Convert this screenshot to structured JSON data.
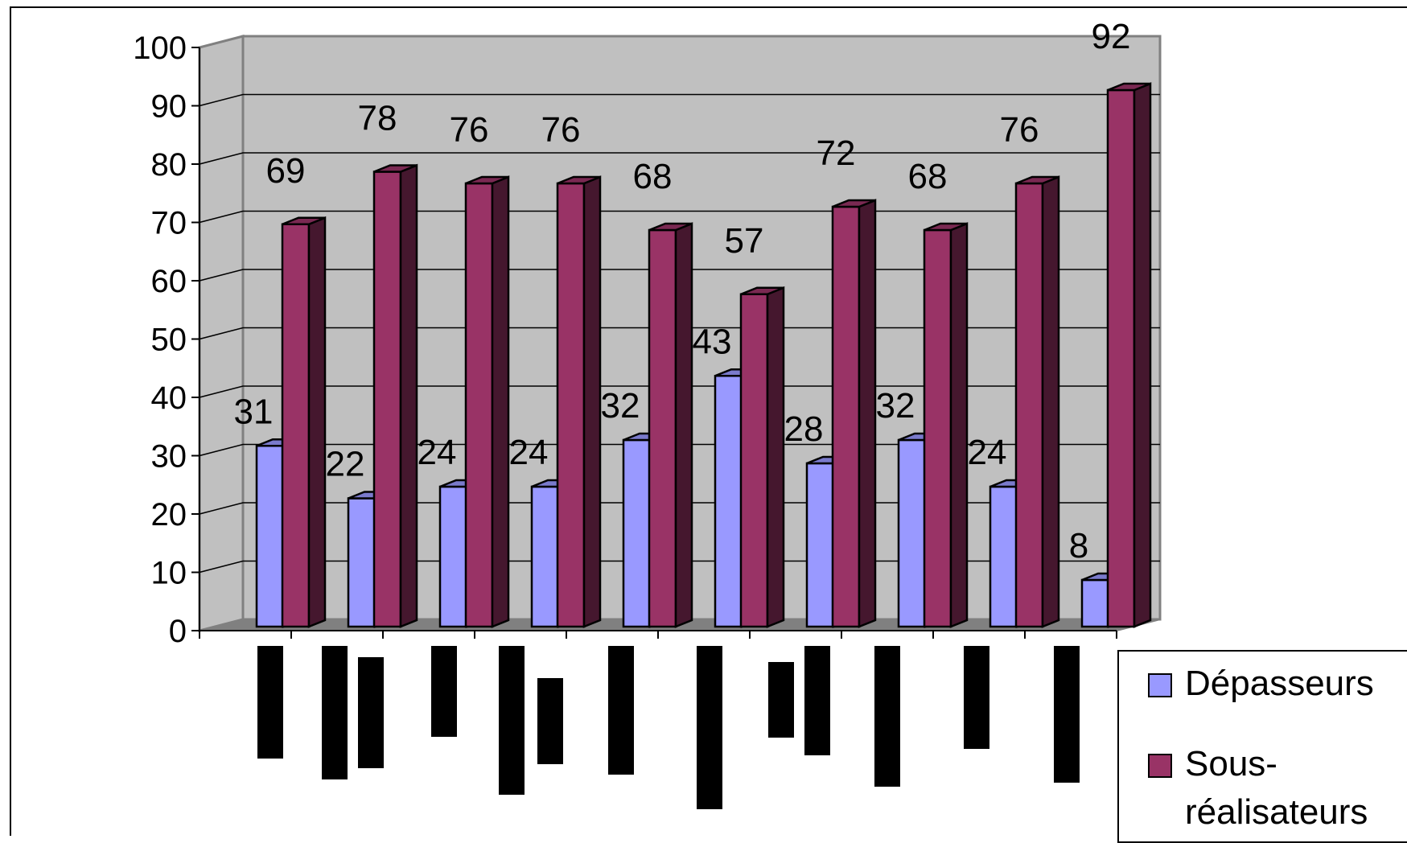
{
  "chart_data": {
    "type": "bar",
    "categories": [
      "",
      "",
      "",
      "",
      "",
      "",
      "",
      "",
      "",
      ""
    ],
    "series": [
      {
        "name": "Dépasseurs",
        "values": [
          31,
          22,
          24,
          24,
          32,
          43,
          28,
          32,
          24,
          8
        ],
        "color": "#9999FF"
      },
      {
        "name": "Sous-réalisateurs",
        "values": [
          69,
          78,
          76,
          76,
          68,
          57,
          72,
          68,
          76,
          92
        ],
        "color": "#993366"
      }
    ],
    "ylim": [
      0,
      100
    ],
    "yticks": [
      "0",
      "10",
      "20",
      "30",
      "40",
      "50",
      "60",
      "70",
      "80",
      "90",
      "100"
    ],
    "grid": true,
    "legend_position": "bottom-right",
    "title": "",
    "xlabel": "",
    "ylabel": ""
  },
  "legend": {
    "items": [
      {
        "label": "Dépasseurs"
      },
      {
        "label": "Sous-\nréalisateurs"
      }
    ]
  }
}
